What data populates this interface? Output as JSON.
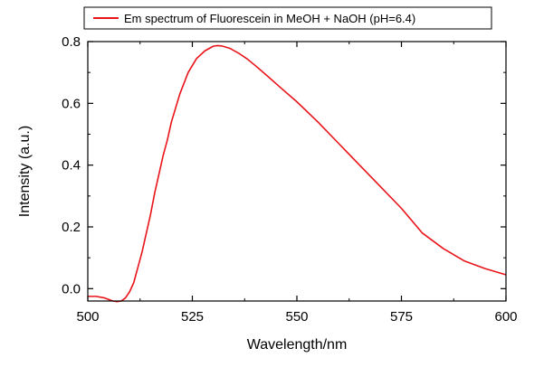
{
  "chart_data": {
    "type": "line",
    "title": "",
    "xlabel": "Wavelength/nm",
    "ylabel": "Intensity (a.u.)",
    "xlim": [
      500,
      600
    ],
    "ylim": [
      -0.04,
      0.8
    ],
    "x_ticks": [
      500,
      525,
      550,
      575,
      600
    ],
    "x_tick_labels": [
      "500",
      "525",
      "550",
      "575",
      "600"
    ],
    "y_ticks": [
      0.0,
      0.2,
      0.4,
      0.6,
      0.8
    ],
    "y_tick_labels": [
      "0.0",
      "0.2",
      "0.4",
      "0.6",
      "0.8"
    ],
    "grid": false,
    "legend_position": "top",
    "series": [
      {
        "name": "Em spectrum of Fluorescein in MeOH + NaOH (pH=6.4)",
        "color": "#e8141a",
        "x": [
          500,
          502,
          504,
          506,
          507,
          508,
          509,
          510,
          511,
          512,
          513,
          514,
          515,
          516,
          517,
          518,
          519,
          520,
          522,
          524,
          526,
          528,
          530,
          531,
          532,
          534,
          536,
          538,
          540,
          543,
          546,
          550,
          555,
          560,
          565,
          570,
          575,
          580,
          585,
          590,
          595,
          600
        ],
        "y": [
          -0.025,
          -0.025,
          -0.03,
          -0.04,
          -0.042,
          -0.04,
          -0.03,
          -0.01,
          0.02,
          0.07,
          0.12,
          0.18,
          0.24,
          0.31,
          0.37,
          0.43,
          0.48,
          0.54,
          0.63,
          0.7,
          0.745,
          0.77,
          0.785,
          0.787,
          0.786,
          0.778,
          0.763,
          0.745,
          0.723,
          0.688,
          0.652,
          0.605,
          0.54,
          0.47,
          0.4,
          0.33,
          0.26,
          0.18,
          0.13,
          0.09,
          0.065,
          0.045
        ]
      }
    ]
  }
}
